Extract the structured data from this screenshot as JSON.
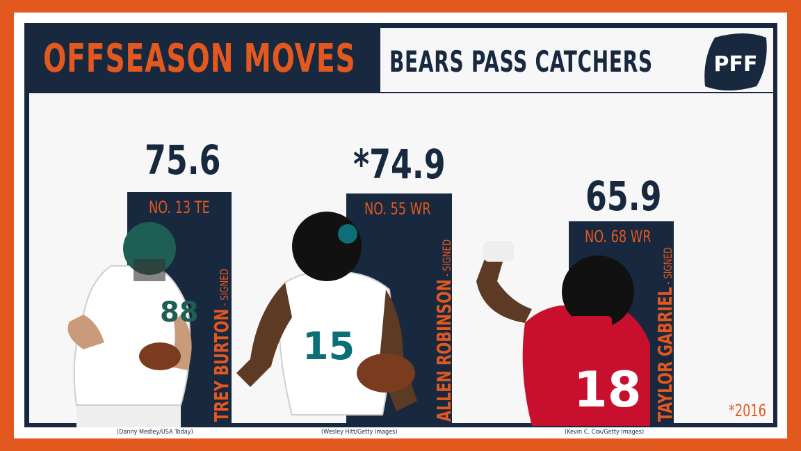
{
  "header": {
    "title": "OFFSEASON MOVES",
    "subtitle": "BEARS PASS CATCHERS",
    "logo_text": "PFF"
  },
  "players": [
    {
      "grade": "75.6",
      "rank": "NO. 13 TE",
      "name": "TREY BURTON",
      "status": "- SIGNED",
      "credit": "(Danny Medley/USA Today)",
      "team_colors": [
        "#1e5e54",
        "#ffffff"
      ],
      "jersey": "88"
    },
    {
      "grade": "*74.9",
      "rank": "NO. 55 WR",
      "name": "ALLEN ROBINSON",
      "status": "- SIGNED",
      "credit": "(Wesley Hitt/Getty  Images)",
      "team_colors": [
        "#0c6f78",
        "#ffffff"
      ],
      "jersey": "15"
    },
    {
      "grade": "65.9",
      "rank": "NO. 68 WR",
      "name": "TAYLOR GABRIEL",
      "status": "- SIGNED",
      "credit": "(Kevin C. Cox/Getty  Images)",
      "team_colors": [
        "#c8102e",
        "#111111"
      ],
      "jersey": "18"
    }
  ],
  "footnote": "*2016",
  "colors": {
    "orange": "#e2581f",
    "navy": "#17283f",
    "white": "#ffffff"
  },
  "icons": {
    "logo": "pff-logo"
  }
}
